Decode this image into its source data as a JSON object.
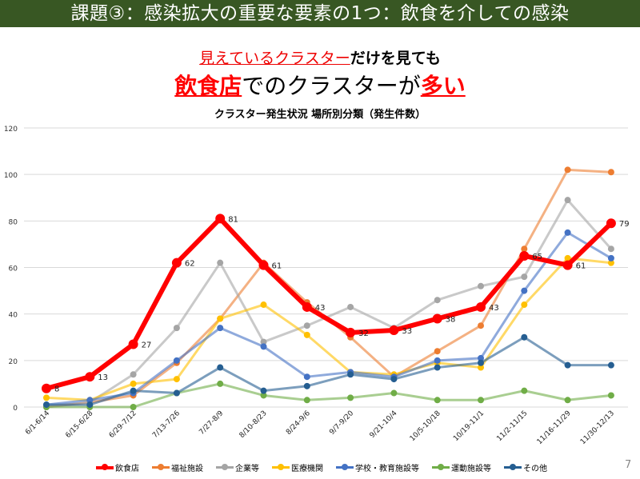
{
  "header": {
    "title": "課題③：感染拡大の重要な要素の1つ：飲食を介しての感染"
  },
  "headline": {
    "line1_red": "見えているクラスター",
    "line1_rest": "だけを見ても",
    "line2_red1": "飲食店",
    "line2_mid": "でのクラスターが",
    "line2_red2": "多い"
  },
  "page_number": "7",
  "chart_data": {
    "type": "line",
    "title": "クラスター発生状況  場所別分類（発生件数）",
    "xlabel": "",
    "ylabel": "",
    "ylim": [
      0,
      120
    ],
    "yticks": [
      0,
      20,
      40,
      60,
      80,
      100,
      120
    ],
    "grid": true,
    "legend": "bottom",
    "categories": [
      "6/1-6/14",
      "6/15-6/28",
      "6/29-7/12",
      "7/13-7/26",
      "7/27-8/9",
      "8/10-8/23",
      "8/24-9/6",
      "9/7-9/20",
      "9/21-10/4",
      "10/5-10/18",
      "10/19-11/1",
      "11/2-11/15",
      "11/16-11/29",
      "11/30-12/13"
    ],
    "series": [
      {
        "name": "福祉施設",
        "color": "#ed7d31",
        "values": [
          0,
          2,
          5,
          19,
          38,
          62,
          45,
          30,
          13,
          24,
          35,
          68,
          102,
          101
        ]
      },
      {
        "name": "企業等",
        "color": "#a5a5a5",
        "values": [
          0,
          2,
          14,
          34,
          62,
          28,
          35,
          43,
          34,
          46,
          52,
          56,
          89,
          68
        ]
      },
      {
        "name": "医療機関",
        "color": "#ffc000",
        "values": [
          4,
          3,
          10,
          12,
          38,
          44,
          31,
          15,
          14,
          19,
          17,
          44,
          64,
          62
        ]
      },
      {
        "name": "学校・教育施設等",
        "color": "#4472c4",
        "values": [
          1,
          3,
          6,
          20,
          34,
          26,
          13,
          15,
          13,
          20,
          21,
          50,
          75,
          64
        ]
      },
      {
        "name": "運動施設等",
        "color": "#70ad47",
        "values": [
          0,
          0,
          0,
          6,
          10,
          5,
          3,
          4,
          6,
          3,
          3,
          7,
          3,
          5
        ]
      },
      {
        "name": "その他",
        "color": "#255e91",
        "values": [
          1,
          1,
          7,
          6,
          17,
          7,
          9,
          14,
          12,
          17,
          19,
          30,
          18,
          18
        ]
      },
      {
        "name": "飲食店",
        "color": "#ff0000",
        "values": [
          8,
          13,
          27,
          62,
          81,
          61,
          43,
          32,
          33,
          38,
          43,
          65,
          61,
          79
        ],
        "data_labels": true
      }
    ],
    "legend_order": [
      "飲食店",
      "福祉施設",
      "企業等",
      "医療機関",
      "学校・教育施設等",
      "運動施設等",
      "その他"
    ]
  }
}
